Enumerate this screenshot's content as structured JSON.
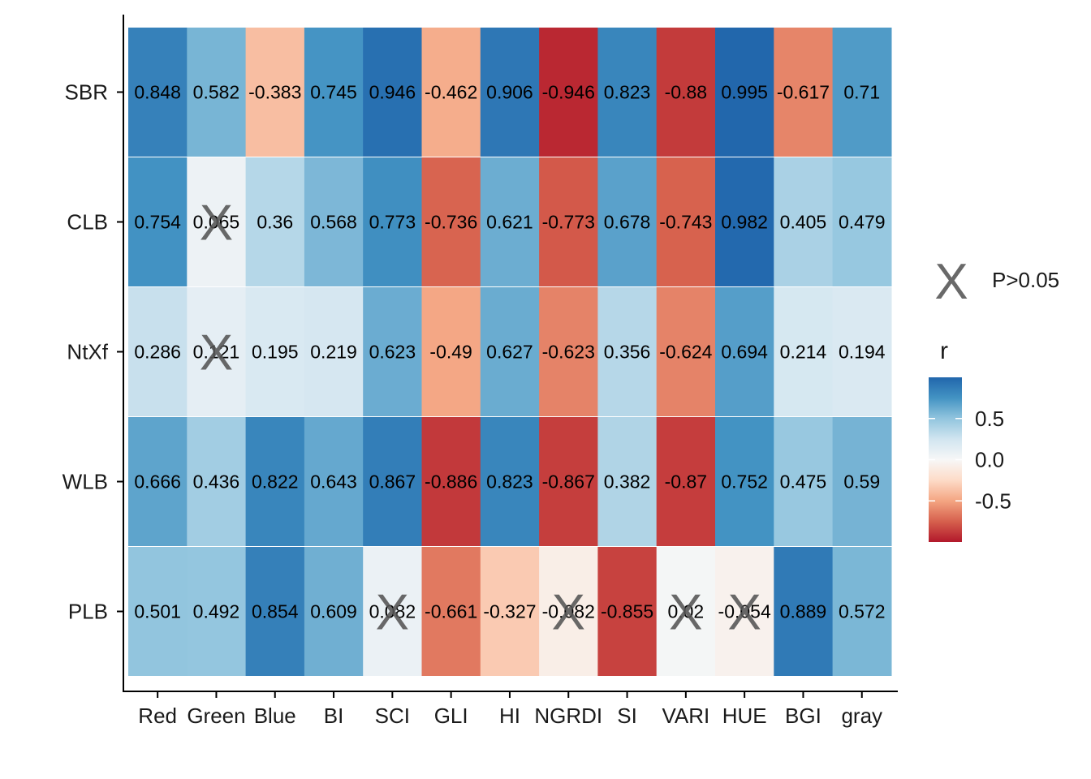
{
  "chart_data": {
    "type": "heatmap",
    "x_categories": [
      "Red",
      "Green",
      "Blue",
      "BI",
      "SCI",
      "GLI",
      "HI",
      "NGRDI",
      "SI",
      "VARI",
      "HUE",
      "BGI",
      "gray"
    ],
    "y_categories": [
      "SBR",
      "CLB",
      "NtXf",
      "WLB",
      "PLB"
    ],
    "values": [
      [
        0.848,
        0.582,
        -0.383,
        0.745,
        0.946,
        -0.462,
        0.906,
        -0.946,
        0.823,
        -0.88,
        0.995,
        -0.617,
        0.71
      ],
      [
        0.754,
        0.065,
        0.36,
        0.568,
        0.773,
        -0.736,
        0.621,
        -0.773,
        0.678,
        -0.743,
        0.982,
        0.405,
        0.479
      ],
      [
        0.286,
        0.121,
        0.195,
        0.219,
        0.623,
        -0.49,
        0.627,
        -0.623,
        0.356,
        -0.624,
        0.694,
        0.214,
        0.194
      ],
      [
        0.666,
        0.436,
        0.822,
        0.643,
        0.867,
        -0.886,
        0.823,
        -0.867,
        0.382,
        -0.87,
        0.752,
        0.475,
        0.59
      ],
      [
        0.501,
        0.492,
        0.854,
        0.609,
        0.082,
        -0.661,
        -0.327,
        -0.082,
        -0.855,
        0.02,
        -0.054,
        0.889,
        0.572
      ]
    ],
    "value_labels": [
      [
        "0.848",
        "0.582",
        "-0.383",
        "0.745",
        "0.946",
        "-0.462",
        "0.906",
        "-0.946",
        "0.823",
        "-0.88",
        "0.995",
        "-0.617",
        "0.71"
      ],
      [
        "0.754",
        "0.065",
        "0.36",
        "0.568",
        "0.773",
        "-0.736",
        "0.621",
        "-0.773",
        "0.678",
        "-0.743",
        "0.982",
        "0.405",
        "0.479"
      ],
      [
        "0.286",
        "0.121",
        "0.195",
        "0.219",
        "0.623",
        "-0.49",
        "0.627",
        "-0.623",
        "0.356",
        "-0.624",
        "0.694",
        "0.214",
        "0.194"
      ],
      [
        "0.666",
        "0.436",
        "0.822",
        "0.643",
        "0.867",
        "-0.886",
        "0.823",
        "-0.867",
        "0.382",
        "-0.87",
        "0.752",
        "0.475",
        "0.59"
      ],
      [
        "0.501",
        "0.492",
        "0.854",
        "0.609",
        "0.082",
        "-0.661",
        "-0.327",
        "-0.082",
        "-0.855",
        "0.02",
        "-0.054",
        "0.889",
        "0.572"
      ]
    ],
    "not_significant": [
      {
        "row": "CLB",
        "col": "Green"
      },
      {
        "row": "NtXf",
        "col": "Green"
      },
      {
        "row": "PLB",
        "col": "SCI"
      },
      {
        "row": "PLB",
        "col": "NGRDI"
      },
      {
        "row": "PLB",
        "col": "VARI"
      },
      {
        "row": "PLB",
        "col": "HUE"
      }
    ],
    "colorbar": {
      "title": "r",
      "range": [
        -1,
        1
      ],
      "ticks": [
        0.5,
        0.0,
        -0.5
      ],
      "tick_labels": [
        "0.5",
        "0.0",
        "-0.5"
      ],
      "colors": [
        "#b2182b",
        "#d6604d",
        "#f4a582",
        "#fddbc7",
        "#f7f7f7",
        "#d1e5f0",
        "#92c5de",
        "#4393c3",
        "#2166ac"
      ]
    },
    "marker_legend": {
      "symbol": "X",
      "label": "P>0.05"
    },
    "legend_position": "right",
    "grid": false
  }
}
